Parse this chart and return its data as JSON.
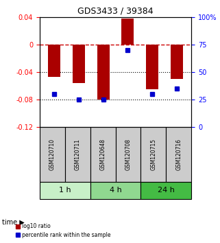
{
  "title": "GDS3433 / 39384",
  "samples": [
    "GSM120710",
    "GSM120711",
    "GSM120648",
    "GSM120708",
    "GSM120715",
    "GSM120716"
  ],
  "time_groups": [
    {
      "label": "1 h",
      "samples": [
        "GSM120710",
        "GSM120711"
      ],
      "color": "#c8f0c8"
    },
    {
      "label": "4 h",
      "samples": [
        "GSM120648",
        "GSM120708"
      ],
      "color": "#90d890"
    },
    {
      "label": "24 h",
      "samples": [
        "GSM120715",
        "GSM120716"
      ],
      "color": "#44bb44"
    }
  ],
  "log10_ratio": [
    -0.047,
    -0.056,
    -0.08,
    0.038,
    -0.065,
    -0.05
  ],
  "percentile_rank": [
    30,
    25,
    25,
    70,
    30,
    35
  ],
  "ylim_left": [
    -0.12,
    0.04
  ],
  "ylim_right": [
    0,
    100
  ],
  "bar_color": "#aa0000",
  "dot_color": "#0000cc",
  "bg_color": "#ffffff",
  "sample_box_color": "#cccccc",
  "zero_line_color": "#cc0000",
  "grid_line_color": "#000000"
}
